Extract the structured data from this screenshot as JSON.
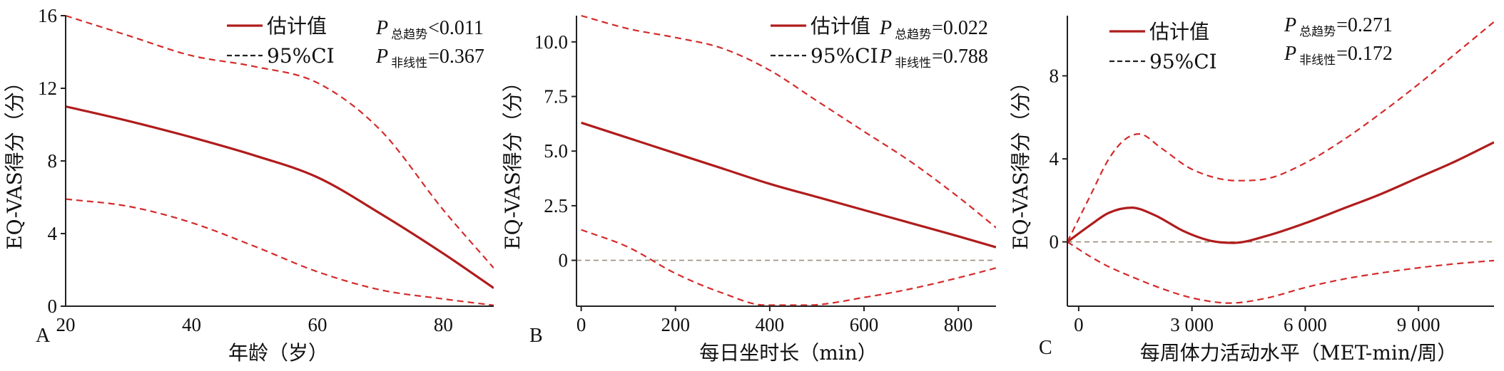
{
  "colors": {
    "estimate": "#b01c1c",
    "ci": "#d42a2a",
    "reference": "#9a8f7a",
    "axis": "#222222"
  },
  "chart_data": [
    {
      "type": "line",
      "panel_label": "A",
      "xlabel": "年龄（岁）",
      "ylabel": "EQ-VAS得分（分）",
      "xlim": [
        20,
        88
      ],
      "ylim": [
        0,
        16
      ],
      "xticks": [
        20,
        40,
        60,
        80
      ],
      "xtick_labels": [
        "20",
        "40",
        "60",
        "80"
      ],
      "yticks": [
        0,
        4,
        8,
        12,
        16
      ],
      "ytick_labels": [
        "0",
        "4",
        "8",
        "12",
        "16"
      ],
      "reference_line": null,
      "legend": {
        "estimate": "估计值",
        "ci": "95%CI"
      },
      "p_values": [
        {
          "symbol": "P",
          "subscript": "总趋势",
          "text": "<0.011"
        },
        {
          "symbol": "P",
          "subscript": "非线性",
          "text": "=0.367"
        }
      ],
      "series": [
        {
          "role": "estimate",
          "x": [
            20,
            30,
            40,
            50,
            60,
            70,
            80,
            88
          ],
          "values": [
            11.0,
            10.2,
            9.3,
            8.3,
            7.1,
            5.1,
            2.9,
            1.0
          ]
        },
        {
          "role": "ci_upper",
          "x": [
            20,
            30,
            40,
            50,
            60,
            70,
            80,
            88
          ],
          "values": [
            16.0,
            14.9,
            13.8,
            13.2,
            12.3,
            9.7,
            5.3,
            2.1
          ]
        },
        {
          "role": "ci_lower",
          "x": [
            20,
            30,
            40,
            50,
            60,
            70,
            80,
            88
          ],
          "values": [
            5.9,
            5.5,
            4.6,
            3.3,
            1.9,
            0.9,
            0.4,
            0.05
          ]
        }
      ]
    },
    {
      "type": "line",
      "panel_label": "B",
      "xlabel": "每日坐时长（min）",
      "ylabel": "EQ-VAS得分（分）",
      "xlim": [
        -10,
        880
      ],
      "ylim": [
        -2.1,
        11.2
      ],
      "xticks": [
        0,
        200,
        400,
        600,
        800
      ],
      "xtick_labels": [
        "0",
        "200",
        "400",
        "600",
        "800"
      ],
      "yticks": [
        0,
        2.5,
        5.0,
        7.5,
        10.0
      ],
      "ytick_labels": [
        "0",
        "2.5",
        "5.0",
        "7.5",
        "10.0"
      ],
      "reference_line": 0,
      "legend": {
        "estimate": "估计值",
        "ci": "95%CI"
      },
      "p_values": [
        {
          "symbol": "P",
          "subscript": "总趋势",
          "text": "=0.022"
        },
        {
          "symbol": "P",
          "subscript": "非线性",
          "text": "=0.788"
        }
      ],
      "series": [
        {
          "role": "estimate",
          "x": [
            0,
            100,
            200,
            300,
            400,
            500,
            600,
            700,
            800,
            880
          ],
          "values": [
            6.3,
            5.6,
            4.9,
            4.2,
            3.5,
            2.9,
            2.3,
            1.7,
            1.1,
            0.6
          ]
        },
        {
          "role": "ci_upper",
          "x": [
            0,
            100,
            200,
            300,
            400,
            500,
            600,
            700,
            800,
            880
          ],
          "values": [
            11.2,
            10.6,
            10.2,
            9.7,
            8.7,
            7.3,
            5.9,
            4.5,
            2.9,
            1.5
          ]
        },
        {
          "role": "ci_lower",
          "x": [
            0,
            100,
            200,
            300,
            390,
            480,
            600,
            700,
            800,
            880
          ],
          "values": [
            1.4,
            0.6,
            -0.6,
            -1.5,
            -2.05,
            -2.05,
            -1.7,
            -1.3,
            -0.8,
            -0.35
          ]
        }
      ]
    },
    {
      "type": "line",
      "panel_label": "C",
      "xlabel": "每周体力活动水平（MET-min/周）",
      "ylabel": "EQ-VAS得分（分）",
      "xlim": [
        -300,
        11000
      ],
      "ylim": [
        -3.1,
        10.9
      ],
      "xticks": [
        0,
        3000,
        6000,
        9000
      ],
      "xtick_labels": [
        "0",
        "3 000",
        "6 000",
        "9 000"
      ],
      "yticks": [
        0,
        4,
        8
      ],
      "ytick_labels": [
        "0",
        "4",
        "8"
      ],
      "reference_line": 0,
      "legend": {
        "estimate": "估计值",
        "ci": "95%CI"
      },
      "p_values": [
        {
          "symbol": "P",
          "subscript": "总趋势",
          "text": "=0.271"
        },
        {
          "symbol": "P",
          "subscript": "非线性",
          "text": "=0.172"
        }
      ],
      "series": [
        {
          "role": "estimate",
          "x": [
            -300,
            300,
            800,
            1400,
            2000,
            2800,
            3500,
            4100,
            5000,
            6000,
            7000,
            8000,
            9000,
            10000,
            11000
          ],
          "values": [
            0.0,
            0.8,
            1.4,
            1.65,
            1.3,
            0.5,
            0.05,
            -0.05,
            0.3,
            0.9,
            1.6,
            2.3,
            3.1,
            3.9,
            4.8
          ]
        },
        {
          "role": "ci_upper",
          "x": [
            -300,
            300,
            800,
            1200,
            1600,
            2200,
            3000,
            4200,
            5000,
            6000,
            7000,
            8000,
            9000,
            10000,
            11000
          ],
          "values": [
            0.0,
            2.2,
            4.0,
            4.9,
            5.2,
            4.5,
            3.5,
            2.95,
            3.05,
            3.8,
            4.9,
            6.2,
            7.6,
            9.1,
            10.6
          ]
        },
        {
          "role": "ci_lower",
          "x": [
            -300,
            300,
            800,
            1500,
            2200,
            3000,
            4000,
            5000,
            6000,
            7000,
            8000,
            9000,
            10000,
            11000
          ],
          "values": [
            0.0,
            -0.7,
            -1.2,
            -1.75,
            -2.25,
            -2.7,
            -2.95,
            -2.7,
            -2.2,
            -1.8,
            -1.5,
            -1.25,
            -1.05,
            -0.9
          ]
        }
      ]
    }
  ]
}
